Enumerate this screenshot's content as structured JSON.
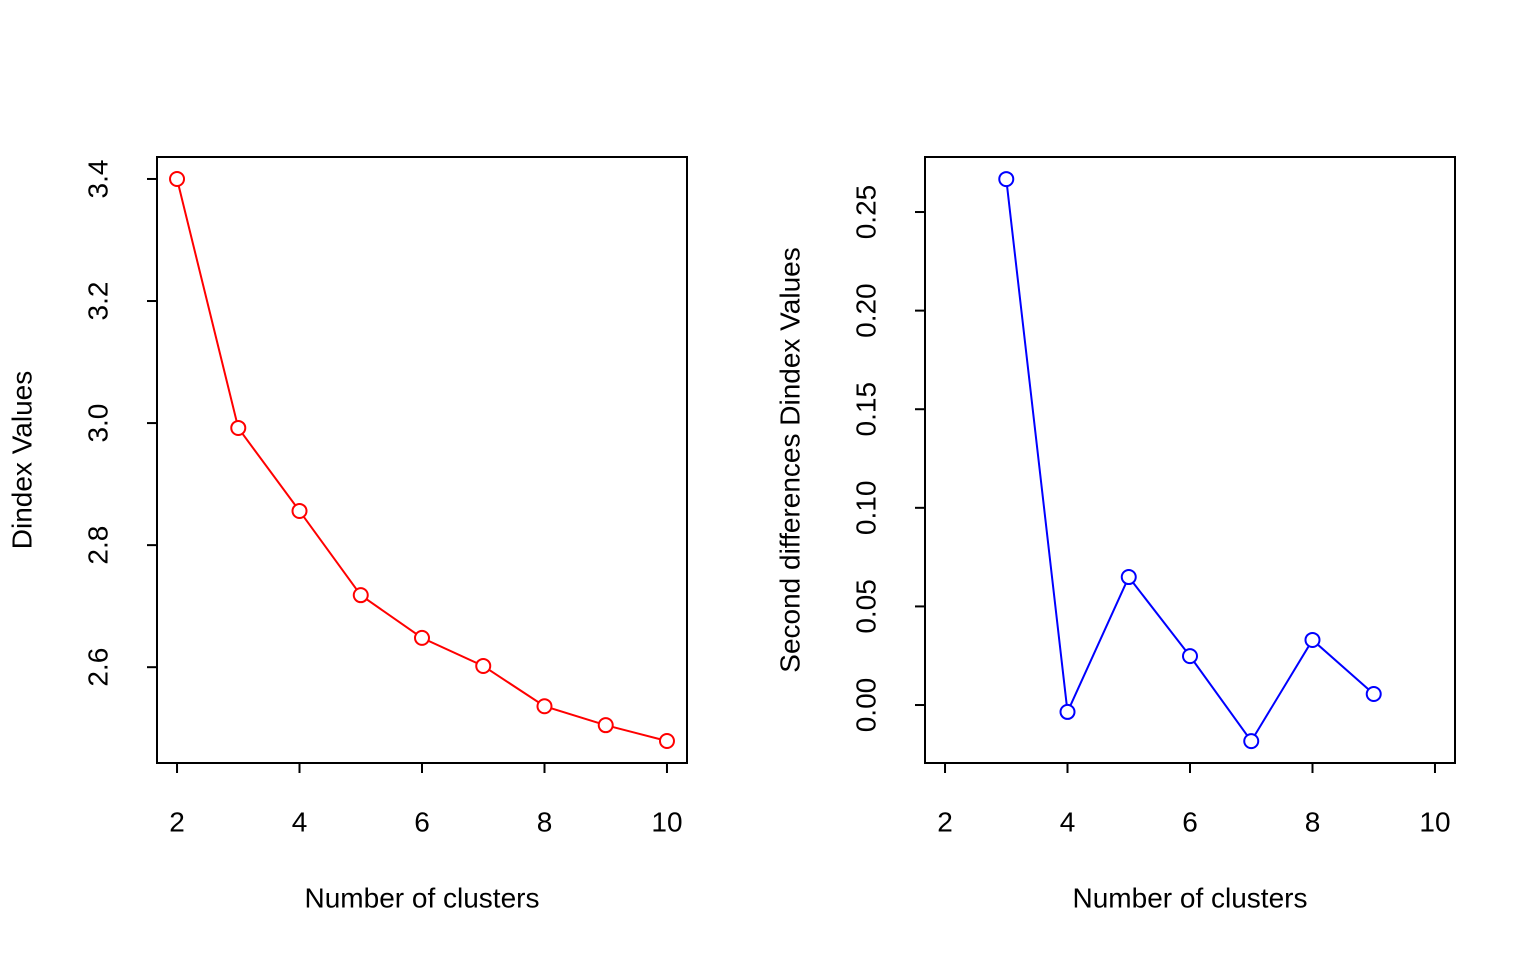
{
  "chart_data": [
    {
      "type": "line",
      "xlabel": "Number of clusters",
      "ylabel": "Dindex Values",
      "x": [
        2,
        3,
        4,
        5,
        6,
        7,
        8,
        9,
        10
      ],
      "series": [
        {
          "color": "#ff0000",
          "values": [
            3.4,
            2.992,
            2.856,
            2.718,
            2.648,
            2.602,
            2.536,
            2.505,
            2.479
          ]
        }
      ],
      "xlim": [
        1.673,
        10.327
      ],
      "ylim": [
        2.443,
        3.436
      ],
      "xticks": [
        2,
        4,
        6,
        8,
        10
      ],
      "yticks": [
        2.6,
        2.8,
        {
          "value": 3,
          "label": "3.0"
        },
        3.2,
        3.4
      ]
    },
    {
      "type": "line",
      "xlabel": "Number of clusters",
      "ylabel": "Second differences Dindex Values",
      "x": [
        3,
        4,
        5,
        6,
        7,
        8,
        9
      ],
      "series": [
        {
          "color": "#0000ff",
          "values": [
            0.2667,
            -0.0035,
            0.0649,
            0.0248,
            -0.0183,
            0.033,
            0.0056
          ]
        }
      ],
      "xlim": [
        1.673,
        10.327
      ],
      "ylim": [
        -0.0294,
        0.2779
      ],
      "xticks": [
        2,
        4,
        6,
        8,
        10
      ],
      "yticks": [
        {
          "value": 0,
          "label": "0.00"
        },
        0.05,
        {
          "value": 0.1,
          "label": "0.10"
        },
        0.15,
        {
          "value": 0.2,
          "label": "0.20"
        },
        0.25
      ]
    }
  ]
}
